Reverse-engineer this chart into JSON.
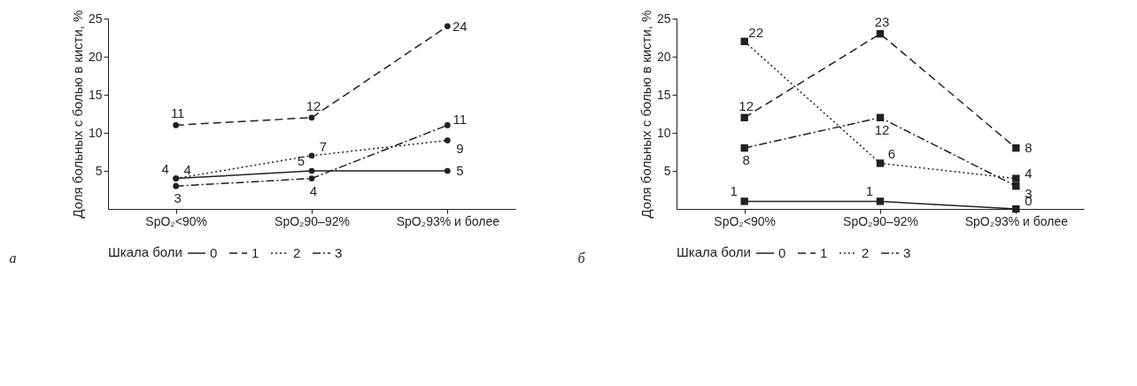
{
  "chart_data": [
    {
      "type": "line",
      "ylabel": "Доля больных с болью в кисти, %",
      "legend_title": "Шкала боли",
      "categories": [
        "SpO₂<90%",
        "SpO₂90–92%",
        "SpO₂93% и более"
      ],
      "ylim": [
        0,
        25
      ],
      "yticks": [
        5,
        10,
        15,
        20,
        25
      ],
      "marker": "circle",
      "data_labels": true,
      "legend": "bottom",
      "annotations": [
        "а"
      ],
      "series": [
        {
          "name": "0",
          "color": "#231f20",
          "line_style": "solid",
          "values": [
            4,
            5,
            5
          ]
        },
        {
          "name": "1",
          "color": "#231f20",
          "line_style": "dashed",
          "values": [
            11,
            12,
            24
          ]
        },
        {
          "name": "2",
          "color": "#231f20",
          "line_style": "dotted",
          "values": [
            4,
            7,
            9
          ]
        },
        {
          "name": "3",
          "color": "#231f20",
          "line_style": "dashdot",
          "values": [
            3,
            4,
            11
          ]
        }
      ]
    },
    {
      "type": "line",
      "ylabel": "Доля больных с болью в кисти, %",
      "legend_title": "Шкала боли",
      "categories": [
        "SpO₂<90%",
        "SpO₂90–92%",
        "SpO₂93% и более"
      ],
      "ylim": [
        0,
        25
      ],
      "yticks": [
        5,
        10,
        15,
        20,
        25
      ],
      "marker": "square",
      "data_labels": true,
      "legend": "bottom",
      "annotations": [
        "б"
      ],
      "series": [
        {
          "name": "0",
          "color": "#231f20",
          "line_style": "solid",
          "values": [
            1,
            1,
            0
          ]
        },
        {
          "name": "1",
          "color": "#231f20",
          "line_style": "dashed",
          "values": [
            12,
            23,
            8
          ]
        },
        {
          "name": "2",
          "color": "#231f20",
          "line_style": "dotted",
          "values": [
            22,
            6,
            4
          ]
        },
        {
          "name": "3",
          "color": "#231f20",
          "line_style": "dashdot",
          "values": [
            8,
            12,
            3
          ]
        }
      ]
    }
  ]
}
